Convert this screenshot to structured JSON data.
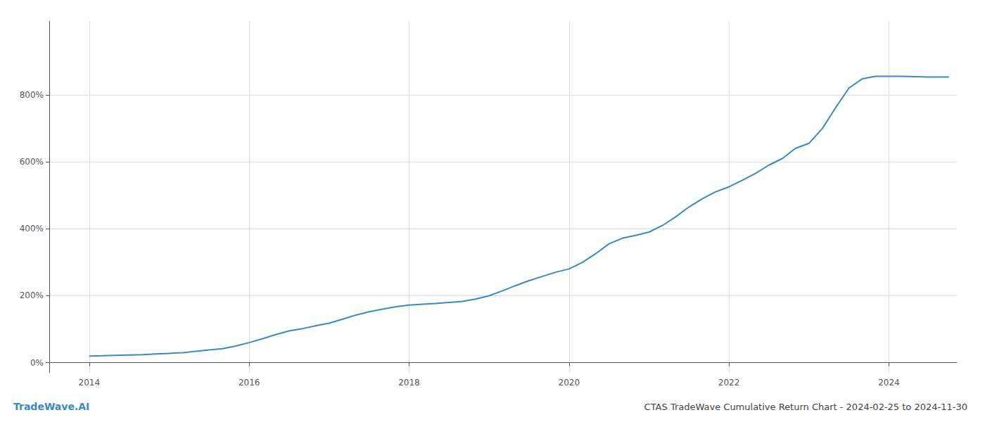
{
  "chart_data": {
    "type": "line",
    "title": "CTAS TradeWave Cumulative Return Chart - 2024-02-25 to 2024-11-30",
    "annotations": [
      "TradeWave.AI"
    ],
    "color": "#3a8abf",
    "grid": true,
    "xlim": [
      2013.5,
      2024.85
    ],
    "xticks": [
      2014,
      2016,
      2018,
      2020,
      2022,
      2024
    ],
    "ylim": [
      -0.3,
      10.2
    ],
    "yticks": [
      {
        "value": 0,
        "label": "0%"
      },
      {
        "value": 2,
        "label": "200%"
      },
      {
        "value": 4,
        "label": "400%"
      },
      {
        "value": 6,
        "label": "600%"
      },
      {
        "value": 8,
        "label": "800%"
      }
    ],
    "x": [
      2014.0,
      2014.17,
      2014.33,
      2014.5,
      2014.67,
      2014.83,
      2015.0,
      2015.17,
      2015.33,
      2015.5,
      2015.67,
      2015.83,
      2016.0,
      2016.17,
      2016.33,
      2016.5,
      2016.67,
      2016.83,
      2017.0,
      2017.17,
      2017.33,
      2017.5,
      2017.67,
      2017.83,
      2018.0,
      2018.17,
      2018.33,
      2018.5,
      2018.67,
      2018.83,
      2019.0,
      2019.17,
      2019.33,
      2019.5,
      2019.67,
      2019.83,
      2020.0,
      2020.17,
      2020.33,
      2020.5,
      2020.67,
      2020.83,
      2021.0,
      2021.17,
      2021.33,
      2021.5,
      2021.67,
      2021.83,
      2022.0,
      2022.17,
      2022.33,
      2022.5,
      2022.67,
      2022.83,
      2023.0,
      2023.17,
      2023.33,
      2023.5,
      2023.67,
      2023.83,
      2024.0,
      2024.17,
      2024.33,
      2024.5,
      2024.67,
      2024.75
    ],
    "values": [
      0.2,
      0.21,
      0.22,
      0.23,
      0.24,
      0.26,
      0.28,
      0.3,
      0.34,
      0.38,
      0.42,
      0.5,
      0.6,
      0.72,
      0.84,
      0.95,
      1.02,
      1.1,
      1.18,
      1.3,
      1.42,
      1.52,
      1.6,
      1.67,
      1.72,
      1.75,
      1.77,
      1.8,
      1.83,
      1.9,
      2.0,
      2.15,
      2.3,
      2.45,
      2.58,
      2.7,
      2.8,
      3.0,
      3.25,
      3.55,
      3.72,
      3.8,
      3.9,
      4.1,
      4.35,
      4.65,
      4.9,
      5.1,
      5.25,
      5.45,
      5.65,
      5.9,
      6.1,
      6.4,
      6.55,
      7.0,
      7.6,
      8.2,
      8.48,
      8.55,
      8.55,
      8.55,
      8.54,
      8.53,
      8.53,
      8.53
    ]
  }
}
